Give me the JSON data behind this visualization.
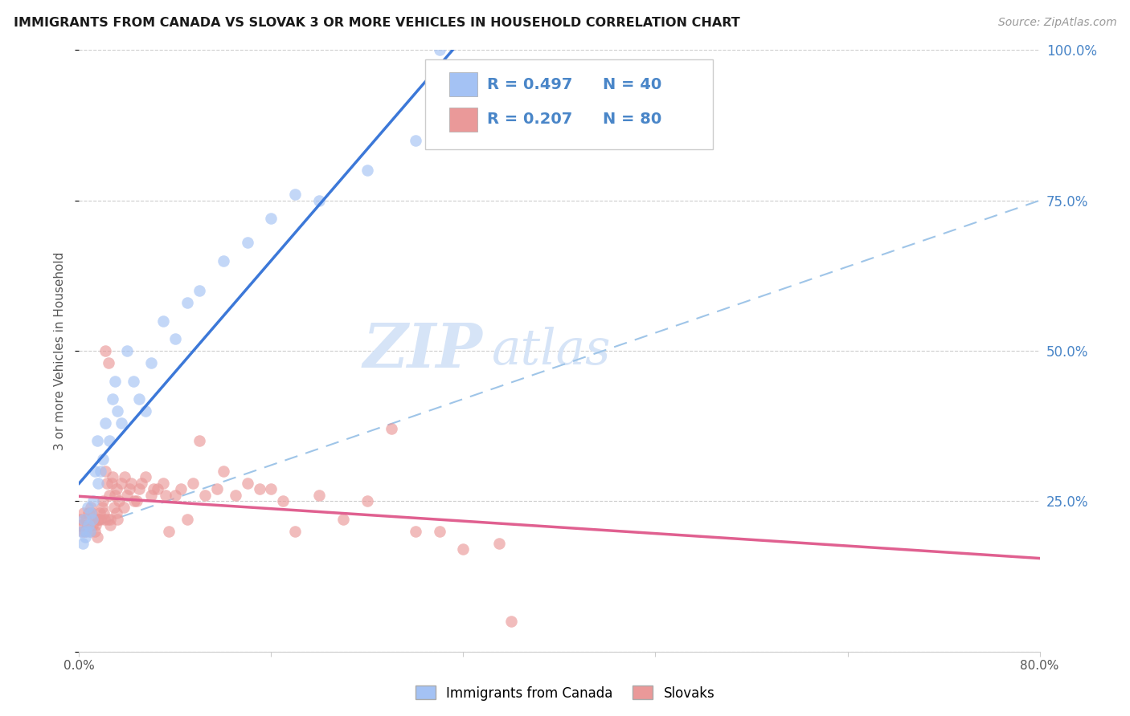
{
  "title": "IMMIGRANTS FROM CANADA VS SLOVAK 3 OR MORE VEHICLES IN HOUSEHOLD CORRELATION CHART",
  "source": "Source: ZipAtlas.com",
  "ylabel": "3 or more Vehicles in Household",
  "yaxis_right_labels": [
    "25.0%",
    "50.0%",
    "75.0%",
    "100.0%"
  ],
  "legend_blue_r": "R = 0.497",
  "legend_blue_n": "N = 40",
  "legend_pink_r": "R = 0.207",
  "legend_pink_n": "N = 80",
  "legend_label1": "Immigrants from Canada",
  "legend_label2": "Slovaks",
  "blue_color": "#a4c2f4",
  "pink_color": "#ea9999",
  "blue_line_color": "#3c78d8",
  "pink_line_color": "#e06090",
  "dashed_line_color": "#9fc5e8",
  "watermark_zip": "ZIP",
  "watermark_atlas": "atlas",
  "xmin": 0.0,
  "xmax": 80.0,
  "ymin": 0.0,
  "ymax": 100.0,
  "grid_color": "#cccccc",
  "title_color": "#1a1a1a",
  "source_color": "#999999",
  "label_color": "#4a86c8",
  "blue_x": [
    0.2,
    0.3,
    0.4,
    0.5,
    0.6,
    0.7,
    0.8,
    0.9,
    1.0,
    1.1,
    1.2,
    1.3,
    1.5,
    1.6,
    1.8,
    2.0,
    2.2,
    2.5,
    2.8,
    3.0,
    3.2,
    3.5,
    4.0,
    4.5,
    5.0,
    5.5,
    6.0,
    7.0,
    8.0,
    9.0,
    10.0,
    12.0,
    14.0,
    16.0,
    18.0,
    20.0,
    24.0,
    28.0,
    30.0,
    35.0
  ],
  "blue_y": [
    20.0,
    18.0,
    22.0,
    19.0,
    20.0,
    24.0,
    21.0,
    20.0,
    23.0,
    22.0,
    25.0,
    30.0,
    35.0,
    28.0,
    30.0,
    32.0,
    38.0,
    35.0,
    42.0,
    45.0,
    40.0,
    38.0,
    50.0,
    45.0,
    42.0,
    40.0,
    48.0,
    55.0,
    52.0,
    58.0,
    60.0,
    65.0,
    68.0,
    72.0,
    76.0,
    75.0,
    80.0,
    85.0,
    100.0,
    90.0
  ],
  "pink_x": [
    0.1,
    0.2,
    0.3,
    0.4,
    0.5,
    0.6,
    0.7,
    0.8,
    0.9,
    1.0,
    1.1,
    1.2,
    1.3,
    1.4,
    1.5,
    1.6,
    1.7,
    1.8,
    1.9,
    2.0,
    2.1,
    2.2,
    2.3,
    2.4,
    2.5,
    2.6,
    2.7,
    2.8,
    2.9,
    3.0,
    3.1,
    3.2,
    3.3,
    3.5,
    3.7,
    4.0,
    4.3,
    4.6,
    5.0,
    5.5,
    6.0,
    6.5,
    7.0,
    7.5,
    8.0,
    9.0,
    10.0,
    12.0,
    14.0,
    16.0,
    18.0,
    22.0,
    26.0,
    30.0,
    35.0,
    2.15,
    2.45,
    3.15,
    3.8,
    4.2,
    4.8,
    5.2,
    6.2,
    7.2,
    8.5,
    9.5,
    10.5,
    11.5,
    13.0,
    15.0,
    17.0,
    20.0,
    24.0,
    28.0,
    32.0,
    36.0,
    1.05,
    1.55,
    2.05,
    2.55
  ],
  "pink_y": [
    22.0,
    21.0,
    20.0,
    23.0,
    20.0,
    22.0,
    21.0,
    23.0,
    20.0,
    24.0,
    21.0,
    22.0,
    20.0,
    21.0,
    19.0,
    22.0,
    23.0,
    22.0,
    24.0,
    25.0,
    22.0,
    30.0,
    28.0,
    22.0,
    26.0,
    21.0,
    28.0,
    29.0,
    24.0,
    26.0,
    27.0,
    22.0,
    25.0,
    28.0,
    24.0,
    26.0,
    28.0,
    25.0,
    27.0,
    29.0,
    26.0,
    27.0,
    28.0,
    20.0,
    26.0,
    22.0,
    35.0,
    30.0,
    28.0,
    27.0,
    20.0,
    22.0,
    37.0,
    20.0,
    18.0,
    50.0,
    48.0,
    23.0,
    29.0,
    27.0,
    25.0,
    28.0,
    27.0,
    26.0,
    27.0,
    28.0,
    26.0,
    27.0,
    26.0,
    27.0,
    25.0,
    26.0,
    25.0,
    20.0,
    17.0,
    5.0,
    23.0,
    22.0,
    23.0,
    22.0
  ]
}
